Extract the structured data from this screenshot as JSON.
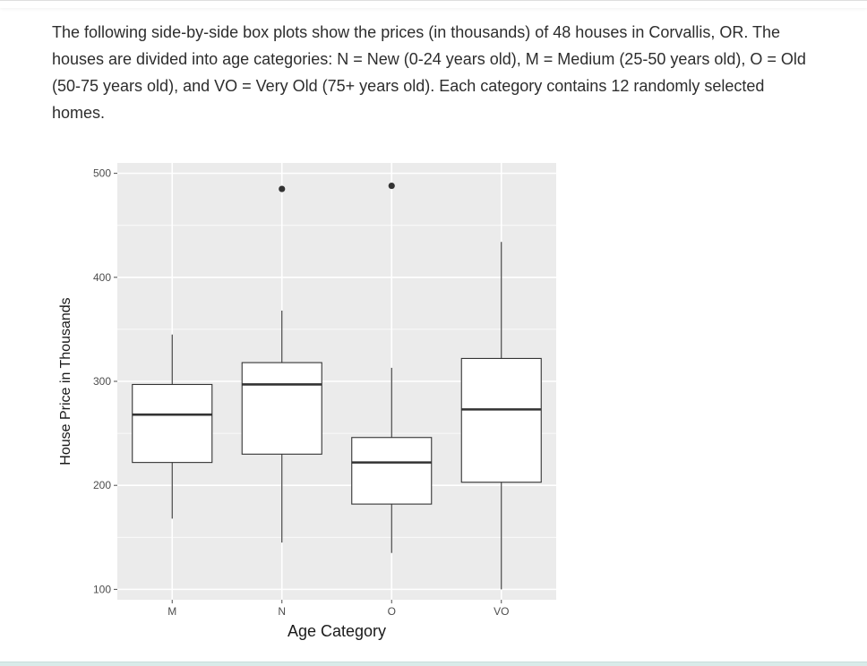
{
  "question": {
    "text": "The following side-by-side box plots show the prices (in thousands) of 48 houses in Corvallis, OR. The houses are divided into age categories: N = New (0-24 years old), M = Medium (25-50 years old), O = Old (50-75 years old), and VO = Very Old (75+ years old). Each category contains 12 randomly selected homes."
  },
  "chart_data": {
    "type": "box",
    "xlabel": "Age Category",
    "ylabel": "House Price in Thousands",
    "categories": [
      "M",
      "N",
      "O",
      "VO"
    ],
    "ylim": [
      90,
      510
    ],
    "yticks": [
      100,
      200,
      300,
      400,
      500
    ],
    "grid": true,
    "boxes": [
      {
        "category": "M",
        "whisker_low": 168,
        "q1": 222,
        "median": 268,
        "q3": 297,
        "whisker_high": 345,
        "outliers": []
      },
      {
        "category": "N",
        "whisker_low": 145,
        "q1": 230,
        "median": 297,
        "q3": 318,
        "whisker_high": 368,
        "outliers": [
          485
        ]
      },
      {
        "category": "O",
        "whisker_low": 135,
        "q1": 182,
        "median": 222,
        "q3": 246,
        "whisker_high": 313,
        "outliers": [
          488
        ]
      },
      {
        "category": "VO",
        "whisker_low": 100,
        "q1": 203,
        "median": 273,
        "q3": 322,
        "whisker_high": 434,
        "outliers": []
      }
    ],
    "colors": {
      "panel": "#ebebeb",
      "grid": "#ffffff",
      "box_fill": "#ffffff",
      "stroke": "#333333",
      "tick_text": "#4d4d4d"
    }
  }
}
